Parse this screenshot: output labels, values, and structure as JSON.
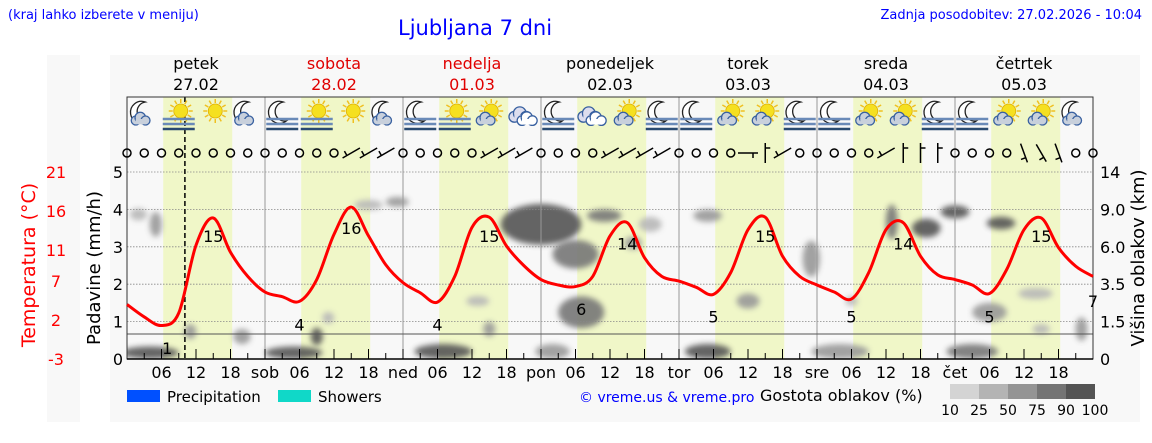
{
  "header": {
    "hint": "(kraj lahko izberete v meniju)",
    "title": "Ljubljana 7 dni",
    "updated": "Zadnja posodobitev: 27.02.2026 - 10:04"
  },
  "colors": {
    "temperature": "#ff0000",
    "weekend": "#e00000",
    "link": "#0000ff",
    "daylight": "#f0f7c8",
    "precipitation": "#0050ff",
    "showers": "#10d8c8"
  },
  "days": [
    {
      "name": "petek",
      "date": "27.02",
      "abbr": "",
      "weekend": false,
      "icons": [
        "moon-cloud",
        "sun-fog",
        "sun",
        "moon-cloud"
      ]
    },
    {
      "name": "sobota",
      "date": "28.02",
      "abbr": "sob",
      "weekend": true,
      "icons": [
        "moon-fog",
        "sun-fog",
        "sun",
        "moon-cloud"
      ]
    },
    {
      "name": "nedelja",
      "date": "01.03",
      "abbr": "ned",
      "weekend": true,
      "icons": [
        "moon-fog",
        "sun-fog",
        "sun-cloud",
        "cloudy"
      ]
    },
    {
      "name": "ponedeljek",
      "date": "02.03",
      "abbr": "pon",
      "weekend": false,
      "icons": [
        "moon-fog",
        "cloudy",
        "sun-cloud",
        "moon-fog"
      ]
    },
    {
      "name": "torek",
      "date": "03.03",
      "abbr": "tor",
      "weekend": false,
      "icons": [
        "moon-fog",
        "sun-cloud",
        "sun-cloud",
        "moon-fog"
      ]
    },
    {
      "name": "sreda",
      "date": "04.03",
      "abbr": "sre",
      "weekend": false,
      "icons": [
        "moon-fog",
        "sun-cloud",
        "sun-cloud",
        "moon-fog"
      ]
    },
    {
      "name": "četrtek",
      "date": "05.03",
      "abbr": "čet",
      "weekend": false,
      "icons": [
        "moon-fog",
        "sun-cloud",
        "sun-cloud",
        "moon-cloud"
      ]
    }
  ],
  "chart_data": {
    "type": "line",
    "title": "Ljubljana 7 dni",
    "x_tick_labels": [
      "06",
      "12",
      "18"
    ],
    "now_marker": "27.02 10:04",
    "daylight_hours": [
      6.3,
      18.3
    ],
    "temperature": {
      "axis_label": "Temperatura (°C)",
      "ticks": [
        21,
        16,
        11,
        7,
        2,
        -3
      ],
      "range": [
        -3,
        21
      ],
      "step_hours": 3,
      "values": [
        4.0,
        2.4,
        1.3,
        2.9,
        11.6,
        15.1,
        10.7,
        7.6,
        5.6,
        5.0,
        4.4,
        7.2,
        13.0,
        16.5,
        12.8,
        9.1,
        6.8,
        5.5,
        4.3,
        7.6,
        13.9,
        15.2,
        11.5,
        9.0,
        7.2,
        6.5,
        6.3,
        7.6,
        12.8,
        14.5,
        10.0,
        7.6,
        7.0,
        6.2,
        5.3,
        8.1,
        13.6,
        15.2,
        10.2,
        7.6,
        6.5,
        5.6,
        4.7,
        8.1,
        13.6,
        14.5,
        10.2,
        7.8,
        7.2,
        6.5,
        5.4,
        8.5,
        13.6,
        15.1,
        11.3,
        8.9,
        7.6
      ],
      "labels": [
        {
          "hour": 7,
          "text": "1"
        },
        {
          "hour": 15,
          "text": "15"
        },
        {
          "hour": 30,
          "text": "4"
        },
        {
          "hour": 39,
          "text": "16"
        },
        {
          "hour": 54,
          "text": "4"
        },
        {
          "hour": 63,
          "text": "15"
        },
        {
          "hour": 79,
          "text": "6"
        },
        {
          "hour": 87,
          "text": "14"
        },
        {
          "hour": 102,
          "text": "5"
        },
        {
          "hour": 111,
          "text": "15"
        },
        {
          "hour": 126,
          "text": "5"
        },
        {
          "hour": 135,
          "text": "14"
        },
        {
          "hour": 150,
          "text": "5"
        },
        {
          "hour": 159,
          "text": "15"
        },
        {
          "hour": 168,
          "text": "7"
        }
      ]
    },
    "precipitation": {
      "axis_label": "Padavine (mm/h)",
      "ticks": [
        0,
        1,
        2,
        3,
        4,
        5
      ],
      "range": [
        0,
        5
      ],
      "values": []
    },
    "cloud_height": {
      "axis_label": "Višina oblakov (km)",
      "ticks": [
        "0",
        "1.5",
        "3.5",
        "6.0",
        "9.0",
        "14"
      ],
      "tick_values": [
        0,
        1.5,
        3.5,
        6.0,
        9.0,
        14
      ]
    },
    "cloud_patches": [
      {
        "hour": 4,
        "km": 0.25,
        "dur": 10,
        "depth": 0.5,
        "density": 90
      },
      {
        "hour": 2,
        "km": 8.6,
        "dur": 3,
        "depth": 1.0,
        "density": 25
      },
      {
        "hour": 5,
        "km": 7.8,
        "dur": 2,
        "depth": 2.0,
        "density": 50
      },
      {
        "hour": 11,
        "km": 1.1,
        "dur": 1.5,
        "depth": 0.6,
        "density": 50
      },
      {
        "hour": 20,
        "km": 0.9,
        "dur": 3,
        "depth": 0.6,
        "density": 50
      },
      {
        "hour": 29,
        "km": 0.25,
        "dur": 10,
        "depth": 0.5,
        "density": 90
      },
      {
        "hour": 33,
        "km": 0.9,
        "dur": 1,
        "depth": 0.7,
        "density": 90
      },
      {
        "hour": 35,
        "km": 1.7,
        "dur": 1,
        "depth": 0.6,
        "density": 25
      },
      {
        "hour": 42,
        "km": 9.6,
        "dur": 5,
        "depth": 1.0,
        "density": 25
      },
      {
        "hour": 47,
        "km": 10.0,
        "dur": 4,
        "depth": 1.0,
        "density": 50
      },
      {
        "hour": 55,
        "km": 0.3,
        "dur": 10,
        "depth": 0.6,
        "density": 90
      },
      {
        "hour": 61,
        "km": 2.6,
        "dur": 4,
        "depth": 0.4,
        "density": 25
      },
      {
        "hour": 63,
        "km": 1.2,
        "dur": 2,
        "depth": 0.6,
        "density": 50
      },
      {
        "hour": 72,
        "km": 7.8,
        "dur": 14,
        "depth": 3.5,
        "density": 90
      },
      {
        "hour": 78,
        "km": 5.5,
        "dur": 8,
        "depth": 2.0,
        "density": 75
      },
      {
        "hour": 79,
        "km": 2.0,
        "dur": 8,
        "depth": 1.6,
        "density": 75
      },
      {
        "hour": 74,
        "km": 0.3,
        "dur": 6,
        "depth": 0.6,
        "density": 50
      },
      {
        "hour": 83,
        "km": 8.5,
        "dur": 6,
        "depth": 1.0,
        "density": 75
      },
      {
        "hour": 88,
        "km": 6.3,
        "dur": 3,
        "depth": 1.0,
        "density": 50
      },
      {
        "hour": 91,
        "km": 7.8,
        "dur": 4,
        "depth": 1.2,
        "density": 25
      },
      {
        "hour": 101,
        "km": 0.3,
        "dur": 8,
        "depth": 0.6,
        "density": 90
      },
      {
        "hour": 101,
        "km": 8.5,
        "dur": 5,
        "depth": 1.0,
        "density": 50
      },
      {
        "hour": 108,
        "km": 2.6,
        "dur": 4,
        "depth": 0.8,
        "density": 50
      },
      {
        "hour": 119,
        "km": 5.2,
        "dur": 3,
        "depth": 2.5,
        "density": 50
      },
      {
        "hour": 124,
        "km": 0.3,
        "dur": 10,
        "depth": 0.6,
        "density": 50
      },
      {
        "hour": 126,
        "km": 2.6,
        "dur": 2,
        "depth": 0.4,
        "density": 25
      },
      {
        "hour": 133,
        "km": 8.0,
        "dur": 2,
        "depth": 3.0,
        "density": 75
      },
      {
        "hour": 139,
        "km": 7.5,
        "dur": 5,
        "depth": 1.5,
        "density": 90
      },
      {
        "hour": 144,
        "km": 8.8,
        "dur": 5,
        "depth": 1.2,
        "density": 90
      },
      {
        "hour": 147,
        "km": 0.3,
        "dur": 9,
        "depth": 0.6,
        "density": 75
      },
      {
        "hour": 150,
        "km": 2.0,
        "dur": 6,
        "depth": 1.0,
        "density": 50
      },
      {
        "hour": 152,
        "km": 7.9,
        "dur": 5,
        "depth": 1.0,
        "density": 90
      },
      {
        "hour": 158,
        "km": 3.0,
        "dur": 6,
        "depth": 0.6,
        "density": 25
      },
      {
        "hour": 159,
        "km": 1.2,
        "dur": 3,
        "depth": 0.4,
        "density": 25
      },
      {
        "hour": 166,
        "km": 1.2,
        "dur": 1.5,
        "depth": 1.0,
        "density": 50
      }
    ],
    "wind": [
      "calm",
      "calm",
      "calm",
      "calm",
      "calm",
      "calm",
      "calm",
      "calm",
      "calm",
      "calm",
      "calm",
      "calm",
      "calm",
      "SW",
      "SW",
      "SW",
      "calm",
      "calm",
      "calm",
      "calm",
      "calm",
      "SW",
      "SW",
      "SW",
      "calm",
      "calm",
      "calm",
      "calm",
      "SW",
      "SW",
      "SW",
      "SW",
      "calm",
      "calm",
      "calm",
      "calm",
      "W",
      "S",
      "SW",
      "calm",
      "calm",
      "calm",
      "calm",
      "calm",
      "SW",
      "S",
      "S",
      "S",
      "calm",
      "calm",
      "calm",
      "calm",
      "NNW",
      "NW",
      "NNW",
      "calm",
      "calm"
    ]
  },
  "legend": {
    "precipitation": "Precipitation",
    "showers": "Showers",
    "copyright": "© vreme.us & vreme.pro",
    "density_title": "Gostota oblakov (%)",
    "density_steps": [
      "10",
      "25",
      "50",
      "75",
      "90",
      "100"
    ],
    "density_colors": [
      "#d4d4d4",
      "#b4b4b4",
      "#949494",
      "#747474",
      "#545454"
    ]
  }
}
